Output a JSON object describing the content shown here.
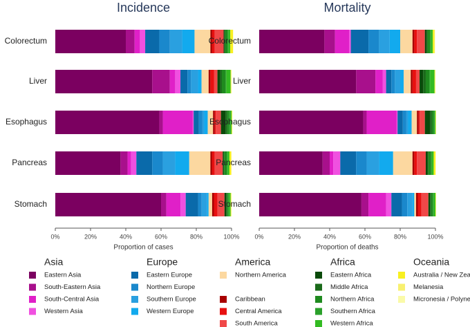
{
  "chart_data": [
    {
      "type": "bar",
      "orientation": "horizontal",
      "stacked": true,
      "title": "Incidence",
      "xlabel": "Proportion of cases",
      "categories": [
        "Colorectum",
        "Liver",
        "Esophagus",
        "Pancreas",
        "Stomach"
      ],
      "xlim": [
        0,
        100
      ],
      "xticks": [
        {
          "value": 0,
          "label": "0%"
        },
        {
          "value": 20,
          "label": "20%"
        },
        {
          "value": 40,
          "label": "40%"
        },
        {
          "value": 60,
          "label": "60%"
        },
        {
          "value": 80,
          "label": "80%"
        },
        {
          "value": 100,
          "label": "100%"
        }
      ],
      "series": [
        {
          "name": "Eastern Asia",
          "group": "Asia",
          "color": "#7b0060",
          "values": [
            40,
            55,
            59,
            37,
            60
          ]
        },
        {
          "name": "South-Eastern Asia",
          "group": "Asia",
          "color": "#a8108c",
          "values": [
            5,
            10,
            2,
            4,
            3
          ]
        },
        {
          "name": "South-Central Asia",
          "group": "Asia",
          "color": "#e020c8",
          "values": [
            3,
            3,
            17,
            2,
            8
          ]
        },
        {
          "name": "Western Asia",
          "group": "Asia",
          "color": "#f050e0",
          "values": [
            3,
            3,
            0.5,
            3,
            3
          ]
        },
        {
          "name": "Eastern Europe",
          "group": "Europe",
          "color": "#0a6aaa",
          "values": [
            8,
            4,
            3,
            9,
            7
          ]
        },
        {
          "name": "Northern Europe",
          "group": "Europe",
          "color": "#1a88cc",
          "values": [
            6,
            2,
            2,
            6,
            2
          ]
        },
        {
          "name": "Southern Europe",
          "group": "Europe",
          "color": "#2aa0e0",
          "values": [
            7,
            4,
            1,
            7,
            3
          ]
        },
        {
          "name": "Western Europe",
          "group": "Europe",
          "color": "#12aaee",
          "values": [
            7,
            2,
            2,
            8,
            1
          ]
        },
        {
          "name": "Northern America",
          "group": "America",
          "color": "#fcd8a0",
          "values": [
            9,
            4,
            3,
            12,
            2
          ]
        },
        {
          "name": "Caribbean",
          "group": "America",
          "color": "#a80000",
          "values": [
            1,
            1,
            1,
            1,
            1
          ]
        },
        {
          "name": "Central America",
          "group": "America",
          "color": "#e81010",
          "values": [
            1.5,
            2,
            0.5,
            1.5,
            2
          ]
        },
        {
          "name": "South America",
          "group": "America",
          "color": "#f04848",
          "values": [
            5,
            2,
            3,
            4.5,
            4
          ]
        },
        {
          "name": "Eastern Africa",
          "group": "Africa",
          "color": "#0a4a0a",
          "values": [
            0.5,
            1.5,
            2.5,
            0.5,
            1
          ]
        },
        {
          "name": "Middle Africa",
          "group": "Africa",
          "color": "#1a6a1a",
          "values": [
            0.3,
            1,
            1,
            0.3,
            0.5
          ]
        },
        {
          "name": "Northern Africa",
          "group": "Africa",
          "color": "#1f8a1f",
          "values": [
            1.5,
            2,
            1,
            1.5,
            0.5
          ]
        },
        {
          "name": "Southern Africa",
          "group": "Africa",
          "color": "#2aa02a",
          "values": [
            0.5,
            0.5,
            1,
            0.5,
            0.5
          ]
        },
        {
          "name": "Western Africa",
          "group": "Africa",
          "color": "#33bb22",
          "values": [
            1,
            2.5,
            0.5,
            1,
            1
          ]
        },
        {
          "name": "Australia / New Zealand",
          "group": "Oceania",
          "color": "#f8f020",
          "values": [
            1.5,
            0.3,
            0.3,
            1,
            0.3
          ]
        },
        {
          "name": "Melanesia",
          "group": "Oceania",
          "color": "#f8f070",
          "values": [
            0.1,
            0.1,
            0.1,
            0.1,
            0.1
          ]
        },
        {
          "name": "Micronesia / Polynesia",
          "group": "Oceania",
          "color": "#fafaa8",
          "values": [
            0.1,
            0.1,
            0.1,
            0.1,
            0.1
          ]
        }
      ]
    },
    {
      "type": "bar",
      "orientation": "horizontal",
      "stacked": true,
      "title": "Mortality",
      "xlabel": "Proportion of deaths",
      "categories": [
        "Colorectum",
        "Liver",
        "Esophagus",
        "Pancreas",
        "Stomach"
      ],
      "xlim": [
        0,
        100
      ],
      "xticks": [
        {
          "value": 0,
          "label": "0%"
        },
        {
          "value": 20,
          "label": "20%"
        },
        {
          "value": 40,
          "label": "40%"
        },
        {
          "value": 60,
          "label": "60%"
        },
        {
          "value": 80,
          "label": "80%"
        },
        {
          "value": 100,
          "label": "100%"
        }
      ],
      "series": [
        {
          "name": "Eastern Asia",
          "group": "Asia",
          "color": "#7b0060",
          "values": [
            37,
            55,
            59,
            36,
            58
          ]
        },
        {
          "name": "South-Eastern Asia",
          "group": "Asia",
          "color": "#a8108c",
          "values": [
            6,
            11,
            2,
            4,
            4
          ]
        },
        {
          "name": "South-Central Asia",
          "group": "Asia",
          "color": "#e020c8",
          "values": [
            8,
            4,
            17,
            2,
            10
          ]
        },
        {
          "name": "Western Asia",
          "group": "Asia",
          "color": "#f050e0",
          "values": [
            1,
            2,
            0.5,
            4,
            3
          ]
        },
        {
          "name": "Eastern Europe",
          "group": "Europe",
          "color": "#0a6aaa",
          "values": [
            10,
            3,
            3,
            9,
            6
          ]
        },
        {
          "name": "Northern Europe",
          "group": "Europe",
          "color": "#1a88cc",
          "values": [
            6,
            2,
            2,
            6,
            3
          ]
        },
        {
          "name": "Southern Europe",
          "group": "Europe",
          "color": "#2aa0e0",
          "values": [
            6,
            3,
            1,
            7,
            3
          ]
        },
        {
          "name": "Western Europe",
          "group": "Europe",
          "color": "#12aaee",
          "values": [
            6,
            2,
            2,
            8,
            1
          ]
        },
        {
          "name": "Northern America",
          "group": "America",
          "color": "#fcd8a0",
          "values": [
            7,
            4,
            3,
            11,
            1
          ]
        },
        {
          "name": "Caribbean",
          "group": "America",
          "color": "#a80000",
          "values": [
            1,
            1,
            1,
            1,
            1
          ]
        },
        {
          "name": "Central America",
          "group": "America",
          "color": "#e81010",
          "values": [
            1.5,
            2,
            0.5,
            1.5,
            2
          ]
        },
        {
          "name": "South America",
          "group": "America",
          "color": "#f04848",
          "values": [
            4.5,
            2,
            3,
            5,
            4
          ]
        },
        {
          "name": "Eastern Africa",
          "group": "Africa",
          "color": "#0a4a0a",
          "values": [
            1,
            2,
            3,
            1,
            1
          ]
        },
        {
          "name": "Middle Africa",
          "group": "Africa",
          "color": "#1a6a1a",
          "values": [
            0.5,
            1.5,
            1,
            0.5,
            0.5
          ]
        },
        {
          "name": "Northern Africa",
          "group": "Africa",
          "color": "#1f8a1f",
          "values": [
            1.5,
            2,
            1,
            1.5,
            1
          ]
        },
        {
          "name": "Southern Africa",
          "group": "Africa",
          "color": "#2aa02a",
          "values": [
            0.5,
            0.5,
            0.5,
            0.5,
            0.5
          ]
        },
        {
          "name": "Western Africa",
          "group": "Africa",
          "color": "#33bb22",
          "values": [
            1,
            2.5,
            0.5,
            1,
            1
          ]
        },
        {
          "name": "Australia / New Zealand",
          "group": "Oceania",
          "color": "#f8f020",
          "values": [
            1,
            0.3,
            0.2,
            1,
            0.2
          ]
        },
        {
          "name": "Melanesia",
          "group": "Oceania",
          "color": "#f8f070",
          "values": [
            0.2,
            0.1,
            0.1,
            0.1,
            0.1
          ]
        },
        {
          "name": "Micronesia / Polynesia",
          "group": "Oceania",
          "color": "#fafaa8",
          "values": [
            0.1,
            0.1,
            0.1,
            0.1,
            0.1
          ]
        }
      ]
    }
  ]
}
